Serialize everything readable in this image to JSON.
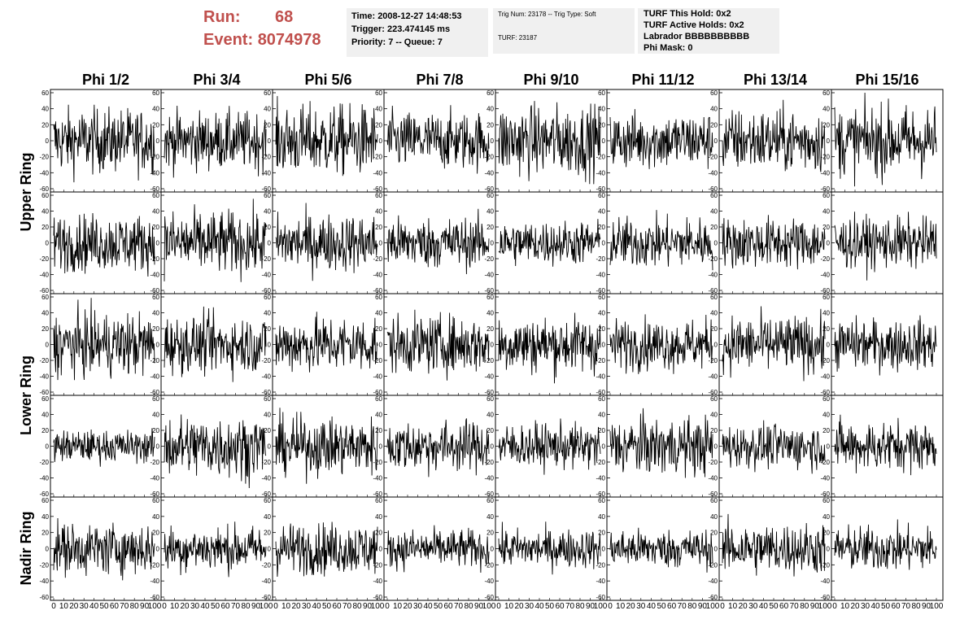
{
  "header": {
    "run_label": "Run:",
    "run_value": "68",
    "event_label": "Event:",
    "event_value": "8074978",
    "time_line": "Time: 2008-12-27 14:48:53",
    "trigger_line": "Trigger: 223.474145 ms",
    "priority_line": "Priority: 7 -- Queue: 7",
    "trig_num_line": "Trig Num: 23178 -- Trig Type: Soft",
    "turf_line": "TURF: 23187",
    "turf_this_hold": "TURF This Hold: 0x2",
    "turf_active_holds": "TURF Active Holds: 0x2",
    "labrador": "Labrador BBBBBBBBBB",
    "phi_mask": "Phi Mask: 0"
  },
  "chart_data": {
    "type": "line",
    "columns": [
      "Phi 1/2",
      "Phi 3/4",
      "Phi 5/6",
      "Phi 7/8",
      "Phi 9/10",
      "Phi 11/12",
      "Phi 13/14",
      "Phi 15/16"
    ],
    "row_groups": [
      "Upper Ring",
      "Lower Ring",
      "Nadir Ring"
    ],
    "rows": 5,
    "xlim": [
      0,
      100
    ],
    "ylim": [
      -60,
      60
    ],
    "x_ticks": [
      "0",
      "10",
      "20",
      "30",
      "40",
      "50",
      "60",
      "70",
      "80",
      "90",
      "100"
    ],
    "y_ticks": [
      "60",
      "40",
      "20",
      "0",
      "-20",
      "-40",
      "-60"
    ],
    "signal": "noise waveform, amplitude approximately ±20 to ±40 about 0, x from 0 to 100",
    "amplitude": [
      [
        20,
        18,
        22,
        18,
        22,
        18,
        20,
        22
      ],
      [
        18,
        20,
        18,
        16,
        14,
        16,
        16,
        16
      ],
      [
        20,
        18,
        18,
        18,
        18,
        16,
        18,
        16
      ],
      [
        10,
        20,
        18,
        16,
        14,
        18,
        14,
        16
      ],
      [
        16,
        14,
        16,
        12,
        12,
        12,
        16,
        14
      ]
    ]
  }
}
